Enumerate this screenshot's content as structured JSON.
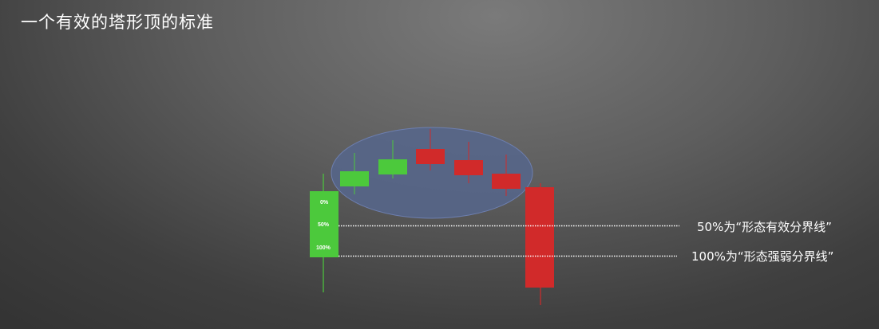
{
  "title": "一个有效的塔形顶的标准",
  "levels": [
    {
      "label": "0%"
    },
    {
      "label": "50%"
    },
    {
      "label": "100%"
    }
  ],
  "lines": [
    {
      "label": "50%为“形态有效分界线”"
    },
    {
      "label": "100%为“形态强弱分界线”"
    }
  ],
  "colors": {
    "bull": "#4cc93c",
    "bear": "#d12a2a",
    "ellipse_fill": "#5a6a90",
    "ellipse_stroke": "#6d7fb0"
  }
}
